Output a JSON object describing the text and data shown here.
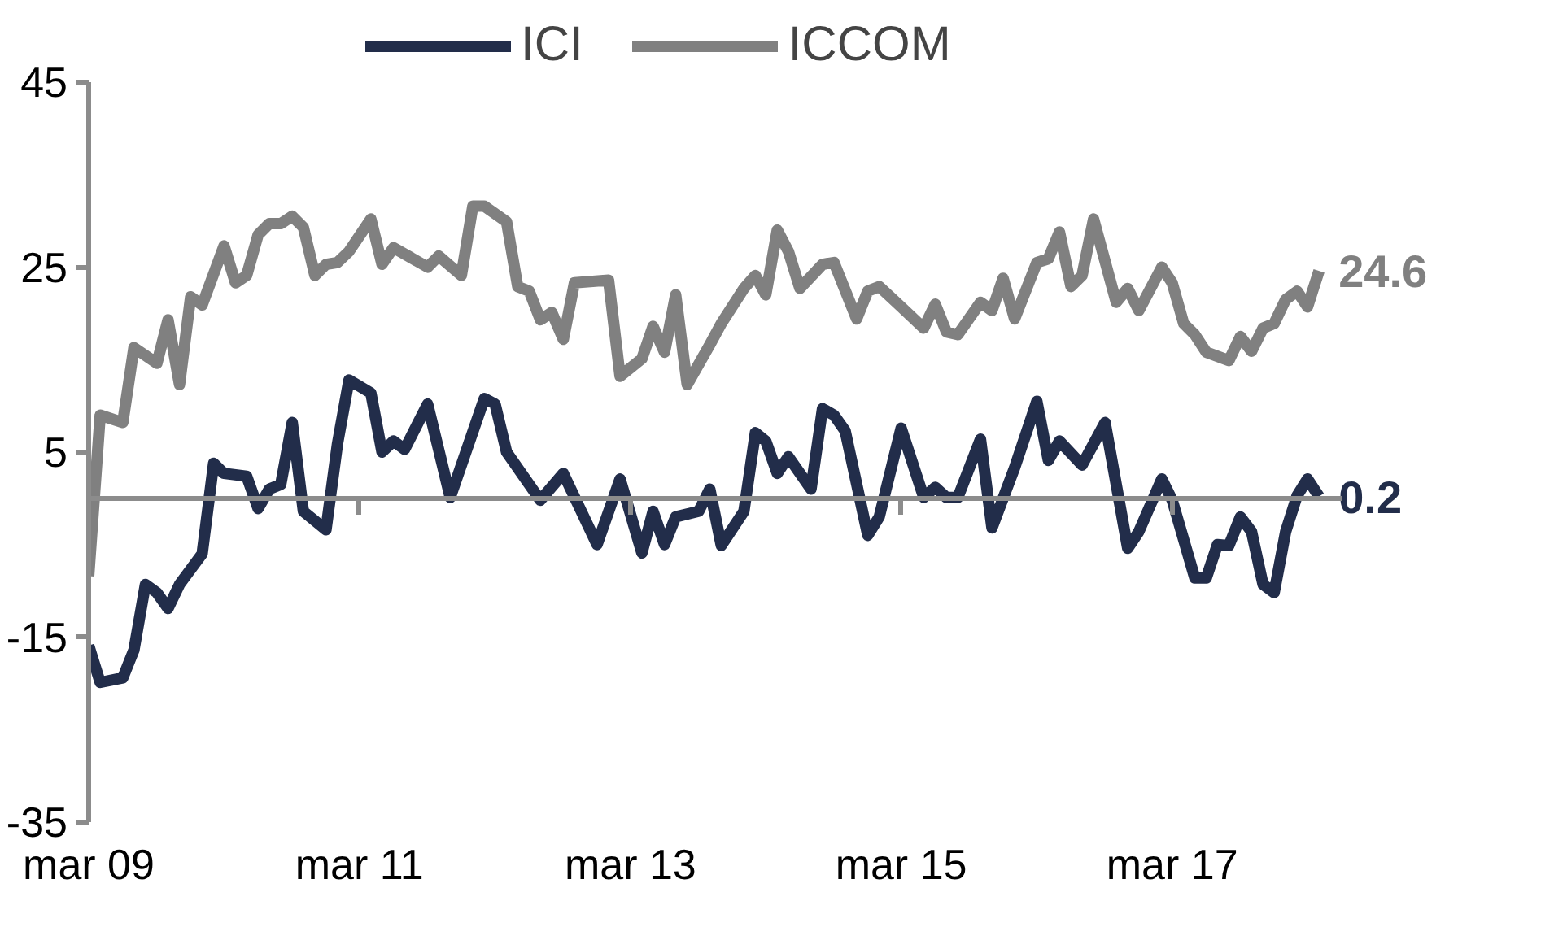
{
  "chart_data": {
    "type": "line",
    "legend": "top",
    "grid": false,
    "marker": "none",
    "line_style": "solid",
    "ylim": [
      -35,
      45
    ],
    "yticks": [
      -35,
      -15,
      5,
      25,
      45
    ],
    "xlim": [
      "2009-03",
      "2018-06"
    ],
    "xticks": [
      {
        "value": "2009-03",
        "label": "mar 09"
      },
      {
        "value": "2011-03",
        "label": "mar 11"
      },
      {
        "value": "2013-03",
        "label": "mar 13"
      },
      {
        "value": "2015-03",
        "label": "mar 15"
      },
      {
        "value": "2017-03",
        "label": "mar 17"
      }
    ],
    "series": [
      {
        "name": "ICI",
        "color": "#222d4a",
        "x": [
          "2009-03",
          "2009-04",
          "2009-06",
          "2009-07",
          "2009-08",
          "2009-09",
          "2009-10",
          "2009-11",
          "2010-01",
          "2010-02",
          "2010-03",
          "2010-05",
          "2010-06",
          "2010-07",
          "2010-08",
          "2010-09",
          "2010-10",
          "2010-12",
          "2011-01",
          "2011-02",
          "2011-04",
          "2011-05",
          "2011-06",
          "2011-07",
          "2011-09",
          "2011-11",
          "2012-02",
          "2012-03",
          "2012-04",
          "2012-07",
          "2012-09",
          "2012-12",
          "2013-02",
          "2013-04",
          "2013-05",
          "2013-06",
          "2013-07",
          "2013-09",
          "2013-10",
          "2013-11",
          "2014-01",
          "2014-02",
          "2014-03",
          "2014-04",
          "2014-05",
          "2014-07",
          "2014-08",
          "2014-09",
          "2014-10",
          "2014-12",
          "2015-01",
          "2015-03",
          "2015-05",
          "2015-06",
          "2015-07",
          "2015-08",
          "2015-10",
          "2015-11",
          "2016-01",
          "2016-03",
          "2016-04",
          "2016-05",
          "2016-07",
          "2016-09",
          "2016-11",
          "2016-12",
          "2017-02",
          "2017-03",
          "2017-05",
          "2017-06",
          "2017-07",
          "2017-08",
          "2017-09",
          "2017-10",
          "2017-11",
          "2017-12",
          "2018-01",
          "2018-02",
          "2018-03",
          "2018-04"
        ],
        "values": [
          -15.9,
          -19.9,
          -19.4,
          -16.4,
          -9.3,
          -10.2,
          -11.9,
          -9.3,
          -6.0,
          3.8,
          2.7,
          2.4,
          -1.1,
          1.0,
          1.5,
          8.2,
          -1.4,
          -3.4,
          5.9,
          12.8,
          11.4,
          5.0,
          6.2,
          5.3,
          10.2,
          0.1,
          10.8,
          10.2,
          5.0,
          -0.2,
          2.7,
          -5.0,
          2.1,
          -5.9,
          -1.4,
          -5.0,
          -2.0,
          -1.4,
          1.0,
          -5.1,
          -1.4,
          7.1,
          6.2,
          2.7,
          4.5,
          1.0,
          9.7,
          9.0,
          7.3,
          -4.0,
          -2.0,
          7.6,
          0.1,
          1.2,
          0.1,
          0.1,
          6.4,
          -3.2,
          3.3,
          10.5,
          4.1,
          6.2,
          3.6,
          8.2,
          -5.4,
          -3.6,
          2.1,
          -0.2,
          -8.6,
          -8.6,
          -5.0,
          -5.1,
          -2.0,
          -3.6,
          -9.3,
          -10.2,
          -3.6,
          0.3,
          2.1,
          0.2
        ],
        "value_labels": [
          null,
          null,
          null,
          null,
          null,
          null,
          null,
          null,
          null,
          null,
          null,
          null,
          null,
          null,
          null,
          null,
          null,
          null,
          null,
          null,
          null,
          null,
          null,
          null,
          null,
          null,
          null,
          null,
          null,
          null,
          null,
          null,
          null,
          null,
          null,
          null,
          null,
          null,
          null,
          null,
          null,
          null,
          null,
          null,
          null,
          null,
          null,
          null,
          null,
          null,
          null,
          null,
          null,
          null,
          null,
          null,
          null,
          null,
          null,
          null,
          null,
          null,
          null,
          null,
          null,
          null,
          null,
          null,
          null,
          null,
          null,
          null,
          null,
          null,
          null,
          null,
          null,
          null,
          null,
          "0.2"
        ]
      },
      {
        "name": "ICCOM",
        "color": "#808080",
        "x": [
          "2009-03",
          "2009-04",
          "2009-06",
          "2009-07",
          "2009-09",
          "2009-10",
          "2009-11",
          "2009-12",
          "2010-01",
          "2010-03",
          "2010-04",
          "2010-05",
          "2010-06",
          "2010-07",
          "2010-08",
          "2010-09",
          "2010-10",
          "2010-11",
          "2010-12",
          "2011-01",
          "2011-02",
          "2011-04",
          "2011-05",
          "2011-06",
          "2011-09",
          "2011-10",
          "2011-12",
          "2012-01",
          "2012-02",
          "2012-04",
          "2012-05",
          "2012-06",
          "2012-07",
          "2012-08",
          "2012-09",
          "2012-10",
          "2013-01",
          "2013-02",
          "2013-04",
          "2013-05",
          "2013-06",
          "2013-07",
          "2013-08",
          "2013-10",
          "2013-11",
          "2014-01",
          "2014-02",
          "2014-03",
          "2014-04",
          "2014-05",
          "2014-06",
          "2014-08",
          "2014-09",
          "2014-11",
          "2014-12",
          "2015-01",
          "2015-03",
          "2015-05",
          "2015-06",
          "2015-07",
          "2015-08",
          "2015-10",
          "2015-11",
          "2015-12",
          "2016-01",
          "2016-03",
          "2016-04",
          "2016-05",
          "2016-06",
          "2016-07",
          "2016-08",
          "2016-10",
          "2016-11",
          "2016-12",
          "2017-02",
          "2017-03",
          "2017-04",
          "2017-05",
          "2017-06",
          "2017-08",
          "2017-09",
          "2017-10",
          "2017-11",
          "2017-12",
          "2018-01",
          "2018-02",
          "2018-03",
          "2018-04"
        ],
        "values": [
          -8.4,
          9.0,
          8.2,
          16.3,
          14.6,
          19.3,
          12.3,
          21.8,
          20.9,
          27.3,
          23.3,
          24.1,
          28.5,
          29.7,
          29.7,
          30.5,
          29.3,
          24.1,
          25.3,
          25.5,
          26.7,
          30.2,
          25.3,
          27.1,
          25.0,
          26.2,
          24.1,
          31.6,
          31.6,
          29.9,
          22.9,
          22.4,
          19.3,
          20.1,
          17.2,
          23.3,
          23.6,
          13.2,
          15.1,
          18.6,
          15.8,
          22.0,
          12.3,
          16.6,
          18.9,
          22.7,
          24.1,
          22.0,
          29.0,
          26.7,
          22.7,
          25.3,
          25.5,
          19.4,
          22.4,
          22.9,
          20.7,
          18.4,
          21.0,
          18.0,
          17.7,
          21.2,
          20.3,
          23.8,
          19.4,
          25.5,
          25.9,
          28.8,
          22.9,
          24.1,
          30.2,
          21.2,
          22.7,
          20.3,
          25.0,
          23.3,
          18.9,
          17.7,
          15.8,
          14.9,
          17.5,
          15.9,
          18.4,
          18.9,
          21.5,
          22.4,
          20.7,
          24.6
        ],
        "value_labels": [
          null,
          null,
          null,
          null,
          null,
          null,
          null,
          null,
          null,
          null,
          null,
          null,
          null,
          null,
          null,
          null,
          null,
          null,
          null,
          null,
          null,
          null,
          null,
          null,
          null,
          null,
          null,
          null,
          null,
          null,
          null,
          null,
          null,
          null,
          null,
          null,
          null,
          null,
          null,
          null,
          null,
          null,
          null,
          null,
          null,
          null,
          null,
          null,
          null,
          null,
          null,
          null,
          null,
          null,
          null,
          null,
          null,
          null,
          null,
          null,
          null,
          null,
          null,
          null,
          null,
          null,
          null,
          null,
          null,
          null,
          null,
          null,
          null,
          null,
          null,
          null,
          null,
          null,
          null,
          null,
          null,
          null,
          null,
          null,
          null,
          null,
          null,
          "24.6"
        ]
      }
    ]
  }
}
